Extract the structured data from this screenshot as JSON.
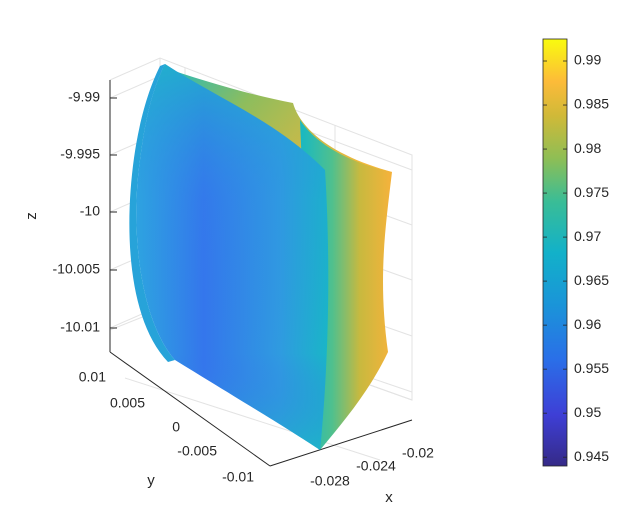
{
  "chart_data": {
    "type": "scatter3d",
    "title": "",
    "xlabel": "x",
    "ylabel": "y",
    "zlabel": "z",
    "x_ticks": [
      "-0.028",
      "-0.024",
      "-0.02"
    ],
    "y_ticks": [
      "0.01",
      "0.005",
      "0",
      "-0.005",
      "-0.01"
    ],
    "z_ticks": [
      "-9.99",
      "-9.995",
      "-10",
      "-10.005",
      "-10.01"
    ],
    "grid": true,
    "colormap": "parula",
    "colorbar": {
      "range": [
        0.944,
        0.9925
      ],
      "tick_labels": [
        "0.99",
        "0.985",
        "0.98",
        "0.975",
        "0.97",
        "0.965",
        "0.96",
        "0.955",
        "0.95",
        "0.945"
      ]
    },
    "surface_color_range": [
      0.958,
      0.986
    ],
    "colors": {
      "low": "#352a87",
      "mid_blue": "#3a6df0",
      "teal": "#18b8c8",
      "orange": "#f3b43a",
      "high": "#f9fb0e"
    }
  }
}
